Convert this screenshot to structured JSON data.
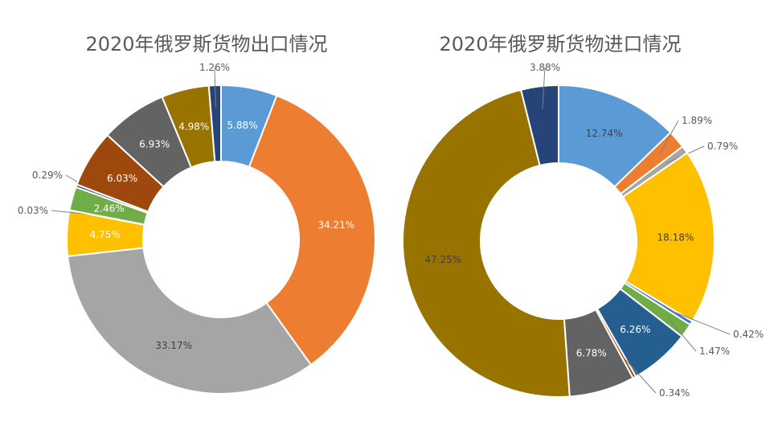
{
  "chart_data": [
    {
      "type": "pie",
      "title": "2020年俄罗斯货物出口情况",
      "categories": [],
      "values": [
        5.88,
        34.21,
        33.17,
        4.75,
        0.03,
        2.46,
        0.29,
        6.03,
        6.93,
        4.98,
        1.26
      ],
      "labels": [
        "5.88%",
        "34.21%",
        "33.17%",
        "4.75%",
        "0.03%",
        "2.46%",
        "0.29%",
        "6.03%",
        "6.93%",
        "4.98%",
        "1.26%"
      ],
      "colors": [
        "#5B9BD5",
        "#ED7D31",
        "#A5A5A5",
        "#FFC000",
        "#4472C4",
        "#70AD47",
        "#264478",
        "#9E480E",
        "#636363",
        "#997300",
        "#264478"
      ],
      "grid": false,
      "legend": "none"
    },
    {
      "type": "pie",
      "title": "2020年俄罗斯货物进口情况",
      "categories": [],
      "values": [
        12.74,
        1.89,
        0.79,
        18.18,
        0.42,
        1.47,
        6.26,
        0.34,
        6.78,
        47.25,
        3.88
      ],
      "labels": [
        "12.74%",
        "1.89%",
        "0.79%",
        "18.18%",
        "0.42%",
        "1.47%",
        "6.26%",
        "0.34%",
        "6.78%",
        "47.25%",
        "3.88%"
      ],
      "colors": [
        "#5B9BD5",
        "#ED7D31",
        "#A5A5A5",
        "#FFC000",
        "#4472C4",
        "#70AD47",
        "#255E91",
        "#9E480E",
        "#636363",
        "#997300",
        "#264478"
      ],
      "grid": false,
      "legend": "none"
    }
  ]
}
